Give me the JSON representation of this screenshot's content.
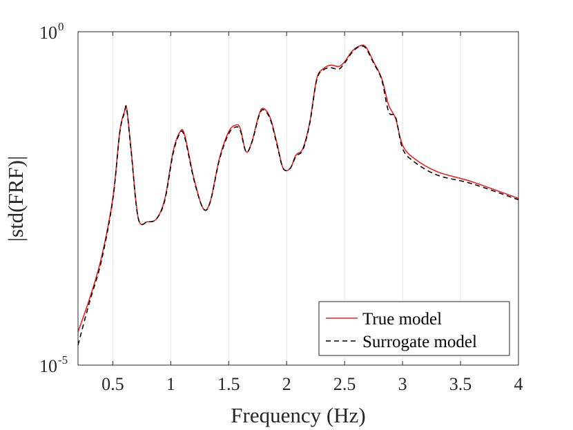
{
  "chart_data": {
    "type": "line",
    "title": "",
    "xlabel": "Frequency (Hz)",
    "ylabel": "|std(FRF)|",
    "xlim": [
      0.2,
      4
    ],
    "ylim_log10": [
      -5,
      0
    ],
    "yscale": "log",
    "xgrid": true,
    "ygrid": false,
    "xticks": [
      {
        "value": 0.5,
        "label": "0.5"
      },
      {
        "value": 1,
        "label": "1"
      },
      {
        "value": 1.5,
        "label": "1.5"
      },
      {
        "value": 2,
        "label": "2"
      },
      {
        "value": 2.5,
        "label": "2.5"
      },
      {
        "value": 3,
        "label": "3"
      },
      {
        "value": 3.5,
        "label": "3.5"
      },
      {
        "value": 4,
        "label": "4"
      }
    ],
    "yticks": [
      {
        "value_log10": 0,
        "base": "10",
        "exponent": "0"
      },
      {
        "value_log10": -5,
        "base": "10",
        "exponent": "-5"
      }
    ],
    "legend": {
      "position": "bottom-right",
      "entries": [
        {
          "label": "True model",
          "color": "#e8231f",
          "style": "solid"
        },
        {
          "label": "Surrogate model",
          "color": "#000000",
          "style": "dashed"
        }
      ]
    },
    "series": [
      {
        "name": "True model",
        "color": "#e8231f",
        "style": "solid",
        "x_log10y": [
          [
            0.2,
            -4.5
          ],
          [
            0.3,
            -4.0
          ],
          [
            0.4,
            -3.4
          ],
          [
            0.5,
            -2.5
          ],
          [
            0.56,
            -1.5
          ],
          [
            0.6,
            -1.2
          ],
          [
            0.62,
            -1.15
          ],
          [
            0.66,
            -1.8
          ],
          [
            0.72,
            -2.8
          ],
          [
            0.8,
            -2.85
          ],
          [
            0.88,
            -2.8
          ],
          [
            0.95,
            -2.5
          ],
          [
            1.02,
            -1.8
          ],
          [
            1.08,
            -1.5
          ],
          [
            1.12,
            -1.55
          ],
          [
            1.2,
            -2.2
          ],
          [
            1.28,
            -2.65
          ],
          [
            1.34,
            -2.55
          ],
          [
            1.42,
            -1.9
          ],
          [
            1.5,
            -1.5
          ],
          [
            1.56,
            -1.4
          ],
          [
            1.6,
            -1.45
          ],
          [
            1.65,
            -1.8
          ],
          [
            1.7,
            -1.65
          ],
          [
            1.76,
            -1.25
          ],
          [
            1.8,
            -1.15
          ],
          [
            1.86,
            -1.3
          ],
          [
            1.92,
            -1.7
          ],
          [
            1.97,
            -2.05
          ],
          [
            2.03,
            -2.05
          ],
          [
            2.08,
            -1.85
          ],
          [
            2.14,
            -1.75
          ],
          [
            2.2,
            -1.35
          ],
          [
            2.26,
            -0.7
          ],
          [
            2.32,
            -0.55
          ],
          [
            2.38,
            -0.5
          ],
          [
            2.45,
            -0.52
          ],
          [
            2.5,
            -0.45
          ],
          [
            2.56,
            -0.3
          ],
          [
            2.62,
            -0.22
          ],
          [
            2.68,
            -0.22
          ],
          [
            2.75,
            -0.45
          ],
          [
            2.82,
            -0.7
          ],
          [
            2.88,
            -1.1
          ],
          [
            2.94,
            -1.3
          ],
          [
            3.0,
            -1.7
          ],
          [
            3.1,
            -1.9
          ],
          [
            3.3,
            -2.1
          ],
          [
            3.6,
            -2.25
          ],
          [
            4.0,
            -2.5
          ]
        ]
      },
      {
        "name": "Surrogate model",
        "color": "#000000",
        "style": "dashed",
        "x_log10y": [
          [
            0.2,
            -4.7
          ],
          [
            0.3,
            -4.05
          ],
          [
            0.4,
            -3.45
          ],
          [
            0.5,
            -2.52
          ],
          [
            0.56,
            -1.52
          ],
          [
            0.6,
            -1.22
          ],
          [
            0.62,
            -1.16
          ],
          [
            0.66,
            -1.82
          ],
          [
            0.72,
            -2.8
          ],
          [
            0.8,
            -2.85
          ],
          [
            0.88,
            -2.8
          ],
          [
            0.95,
            -2.52
          ],
          [
            1.02,
            -1.83
          ],
          [
            1.08,
            -1.52
          ],
          [
            1.12,
            -1.58
          ],
          [
            1.2,
            -2.22
          ],
          [
            1.28,
            -2.65
          ],
          [
            1.34,
            -2.56
          ],
          [
            1.42,
            -1.92
          ],
          [
            1.5,
            -1.53
          ],
          [
            1.56,
            -1.43
          ],
          [
            1.6,
            -1.48
          ],
          [
            1.65,
            -1.8
          ],
          [
            1.7,
            -1.66
          ],
          [
            1.76,
            -1.27
          ],
          [
            1.8,
            -1.17
          ],
          [
            1.86,
            -1.32
          ],
          [
            1.92,
            -1.72
          ],
          [
            1.97,
            -2.05
          ],
          [
            2.03,
            -2.05
          ],
          [
            2.08,
            -1.87
          ],
          [
            2.14,
            -1.77
          ],
          [
            2.2,
            -1.37
          ],
          [
            2.26,
            -0.72
          ],
          [
            2.32,
            -0.57
          ],
          [
            2.38,
            -0.54
          ],
          [
            2.45,
            -0.56
          ],
          [
            2.5,
            -0.47
          ],
          [
            2.56,
            -0.32
          ],
          [
            2.62,
            -0.23
          ],
          [
            2.68,
            -0.24
          ],
          [
            2.75,
            -0.47
          ],
          [
            2.82,
            -0.72
          ],
          [
            2.88,
            -1.2
          ],
          [
            2.94,
            -1.28
          ],
          [
            3.0,
            -1.75
          ],
          [
            3.1,
            -1.95
          ],
          [
            3.3,
            -2.15
          ],
          [
            3.6,
            -2.28
          ],
          [
            4.0,
            -2.52
          ]
        ]
      }
    ]
  }
}
